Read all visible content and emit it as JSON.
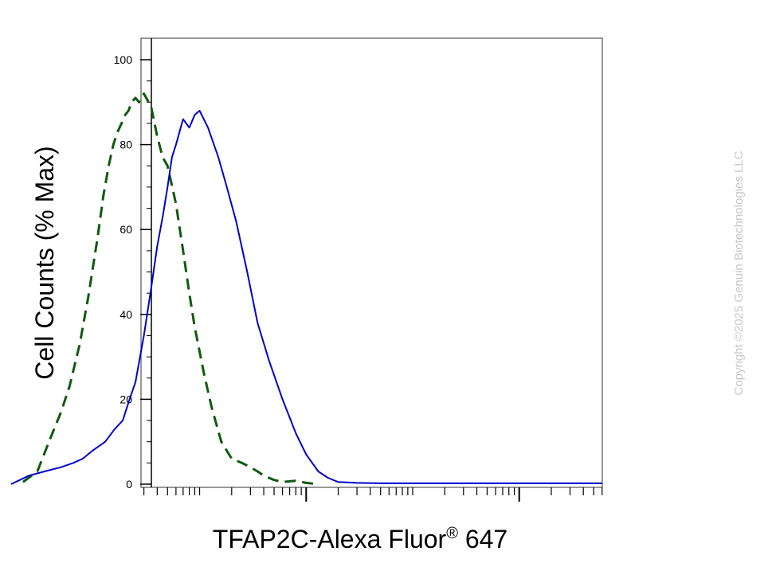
{
  "chart_data": {
    "type": "line",
    "title": "",
    "xlabel": "TFAP2C-Alexa Fluor",
    "xlabel_mark": "®",
    "xlabel_suffix": " 647",
    "ylabel": "Cell Counts (% Max)",
    "ylim": [
      0,
      105
    ],
    "y_ticks": [
      0,
      20,
      40,
      60,
      80,
      100
    ],
    "y_tick_labels": [
      "0",
      "20",
      "40",
      "60",
      "80",
      "100"
    ],
    "x_scale": "log",
    "x_decades": [
      -0.55,
      3.78
    ],
    "x_major_ticks": [
      0.1,
      10,
      1000
    ],
    "grid": false,
    "legend": "none",
    "series": [
      {
        "style": "dashed",
        "color": "#0f5a0f",
        "x": [
          0.022,
          0.03,
          0.04,
          0.05,
          0.06,
          0.075,
          0.09,
          0.11,
          0.125,
          0.14,
          0.155,
          0.17,
          0.185,
          0.2,
          0.215,
          0.23,
          0.25,
          0.27,
          0.3,
          0.35,
          0.4,
          0.45,
          0.5,
          0.6,
          0.7,
          0.8,
          0.9,
          1.1,
          1.3,
          1.6,
          2,
          2.5,
          3,
          3.5,
          4,
          5,
          6,
          8,
          10,
          13
        ],
        "y": [
          0.5,
          3,
          11,
          17,
          23,
          33,
          44,
          58,
          68,
          75,
          80,
          83,
          85,
          87,
          88,
          90,
          91,
          90,
          92,
          89,
          82,
          77,
          75,
          66,
          55,
          45,
          37,
          26,
          18,
          10,
          6,
          5,
          4,
          3,
          2,
          1,
          0.5,
          0.8,
          0.3,
          0
        ]
      },
      {
        "style": "solid",
        "color": "#0000cc",
        "x": [
          0.017,
          0.025,
          0.035,
          0.05,
          0.065,
          0.08,
          0.1,
          0.13,
          0.16,
          0.19,
          0.22,
          0.25,
          0.3,
          0.35,
          0.4,
          0.45,
          0.5,
          0.55,
          0.6,
          0.7,
          0.8,
          0.9,
          1,
          1.2,
          1.5,
          1.8,
          2.2,
          2.8,
          3.5,
          4.5,
          6,
          8,
          10,
          13,
          16,
          20,
          30,
          50,
          100,
          200,
          500,
          1000,
          3000,
          6000
        ],
        "y": [
          0,
          2,
          3,
          4,
          5,
          6,
          8,
          10,
          13,
          15,
          20,
          24,
          35,
          46,
          56,
          63,
          70,
          77,
          80,
          86,
          84,
          87,
          88,
          84,
          77,
          70,
          62,
          50,
          38,
          29,
          20,
          12,
          7,
          3,
          1.5,
          0.5,
          0.3,
          0.2,
          0.2,
          0.2,
          0.2,
          0.2,
          0.2,
          0.2
        ]
      }
    ]
  },
  "copyright": "Copyright ©2025 Genuin Biotechnologies LLC"
}
